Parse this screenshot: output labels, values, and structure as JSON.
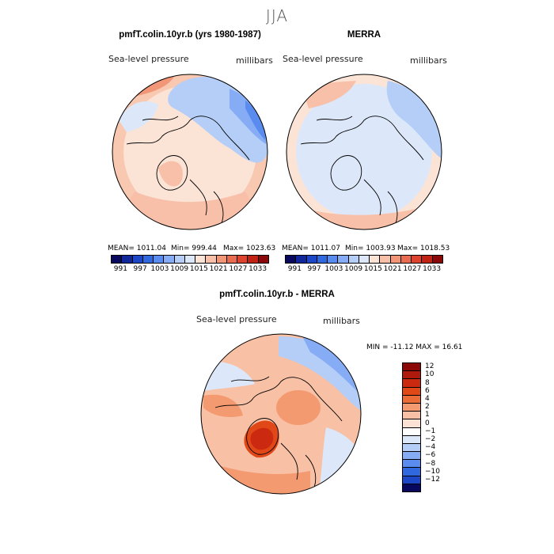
{
  "title": "JJA",
  "chart_data": [
    {
      "type": "heatmap",
      "title": "pmfT.colin.10yr.b (yrs 1980-1987)",
      "field_label": "Sea-level pressure",
      "units_label": "millibars",
      "stats": {
        "mean_label": "MEAN= 1011.04",
        "min_label": "Min= 999.44",
        "max_label": "Max= 1023.63"
      },
      "colorbar": {
        "ticks": [
          "991",
          "997",
          "1003",
          "1009",
          "1015",
          "1021",
          "1027",
          "1033"
        ],
        "colors": [
          "#08085e",
          "#10289a",
          "#1c48c8",
          "#3068e0",
          "#5a8cf0",
          "#86acf6",
          "#b4cef8",
          "#dce8fa",
          "#fbe3d6",
          "#f8c0a8",
          "#f29678",
          "#ea6c50",
          "#dc4430",
          "#c02214",
          "#8c0808"
        ]
      }
    },
    {
      "type": "heatmap",
      "title": "MERRA",
      "field_label": "Sea-level pressure",
      "units_label": "millibars",
      "stats": {
        "mean_label": "MEAN= 1011.07",
        "min_label": "Min= 1003.93",
        "max_label": "Max= 1018.53"
      },
      "colorbar": {
        "ticks": [
          "991",
          "997",
          "1003",
          "1009",
          "1015",
          "1021",
          "1027",
          "1033"
        ],
        "colors": [
          "#08085e",
          "#10289a",
          "#1c48c8",
          "#3068e0",
          "#5a8cf0",
          "#86acf6",
          "#b4cef8",
          "#dce8fa",
          "#fbe3d6",
          "#f8c0a8",
          "#f29678",
          "#ea6c50",
          "#dc4430",
          "#c02214",
          "#8c0808"
        ]
      }
    },
    {
      "type": "heatmap",
      "title": "pmfT.colin.10yr.b - MERRA",
      "field_label": "Sea-level pressure",
      "units_label": "millibars",
      "stats": {
        "minmax_label": "MIN = -11.12 MAX =  16.61"
      },
      "colorbar": {
        "ticks": [
          "12",
          "10",
          "8",
          "6",
          "4",
          "2",
          "1",
          "0",
          "−1",
          "−2",
          "−4",
          "−6",
          "−8",
          "−10",
          "−12"
        ],
        "colors": [
          "#8c0808",
          "#b01a0c",
          "#cc2a10",
          "#e04818",
          "#ec6c38",
          "#f49a70",
          "#f8c0a4",
          "#fbe2d4",
          "#ffffff",
          "#dce8fa",
          "#b4cef8",
          "#86acf6",
          "#5a8cf0",
          "#3068e0",
          "#1c48c8",
          "#08085e"
        ]
      }
    }
  ]
}
